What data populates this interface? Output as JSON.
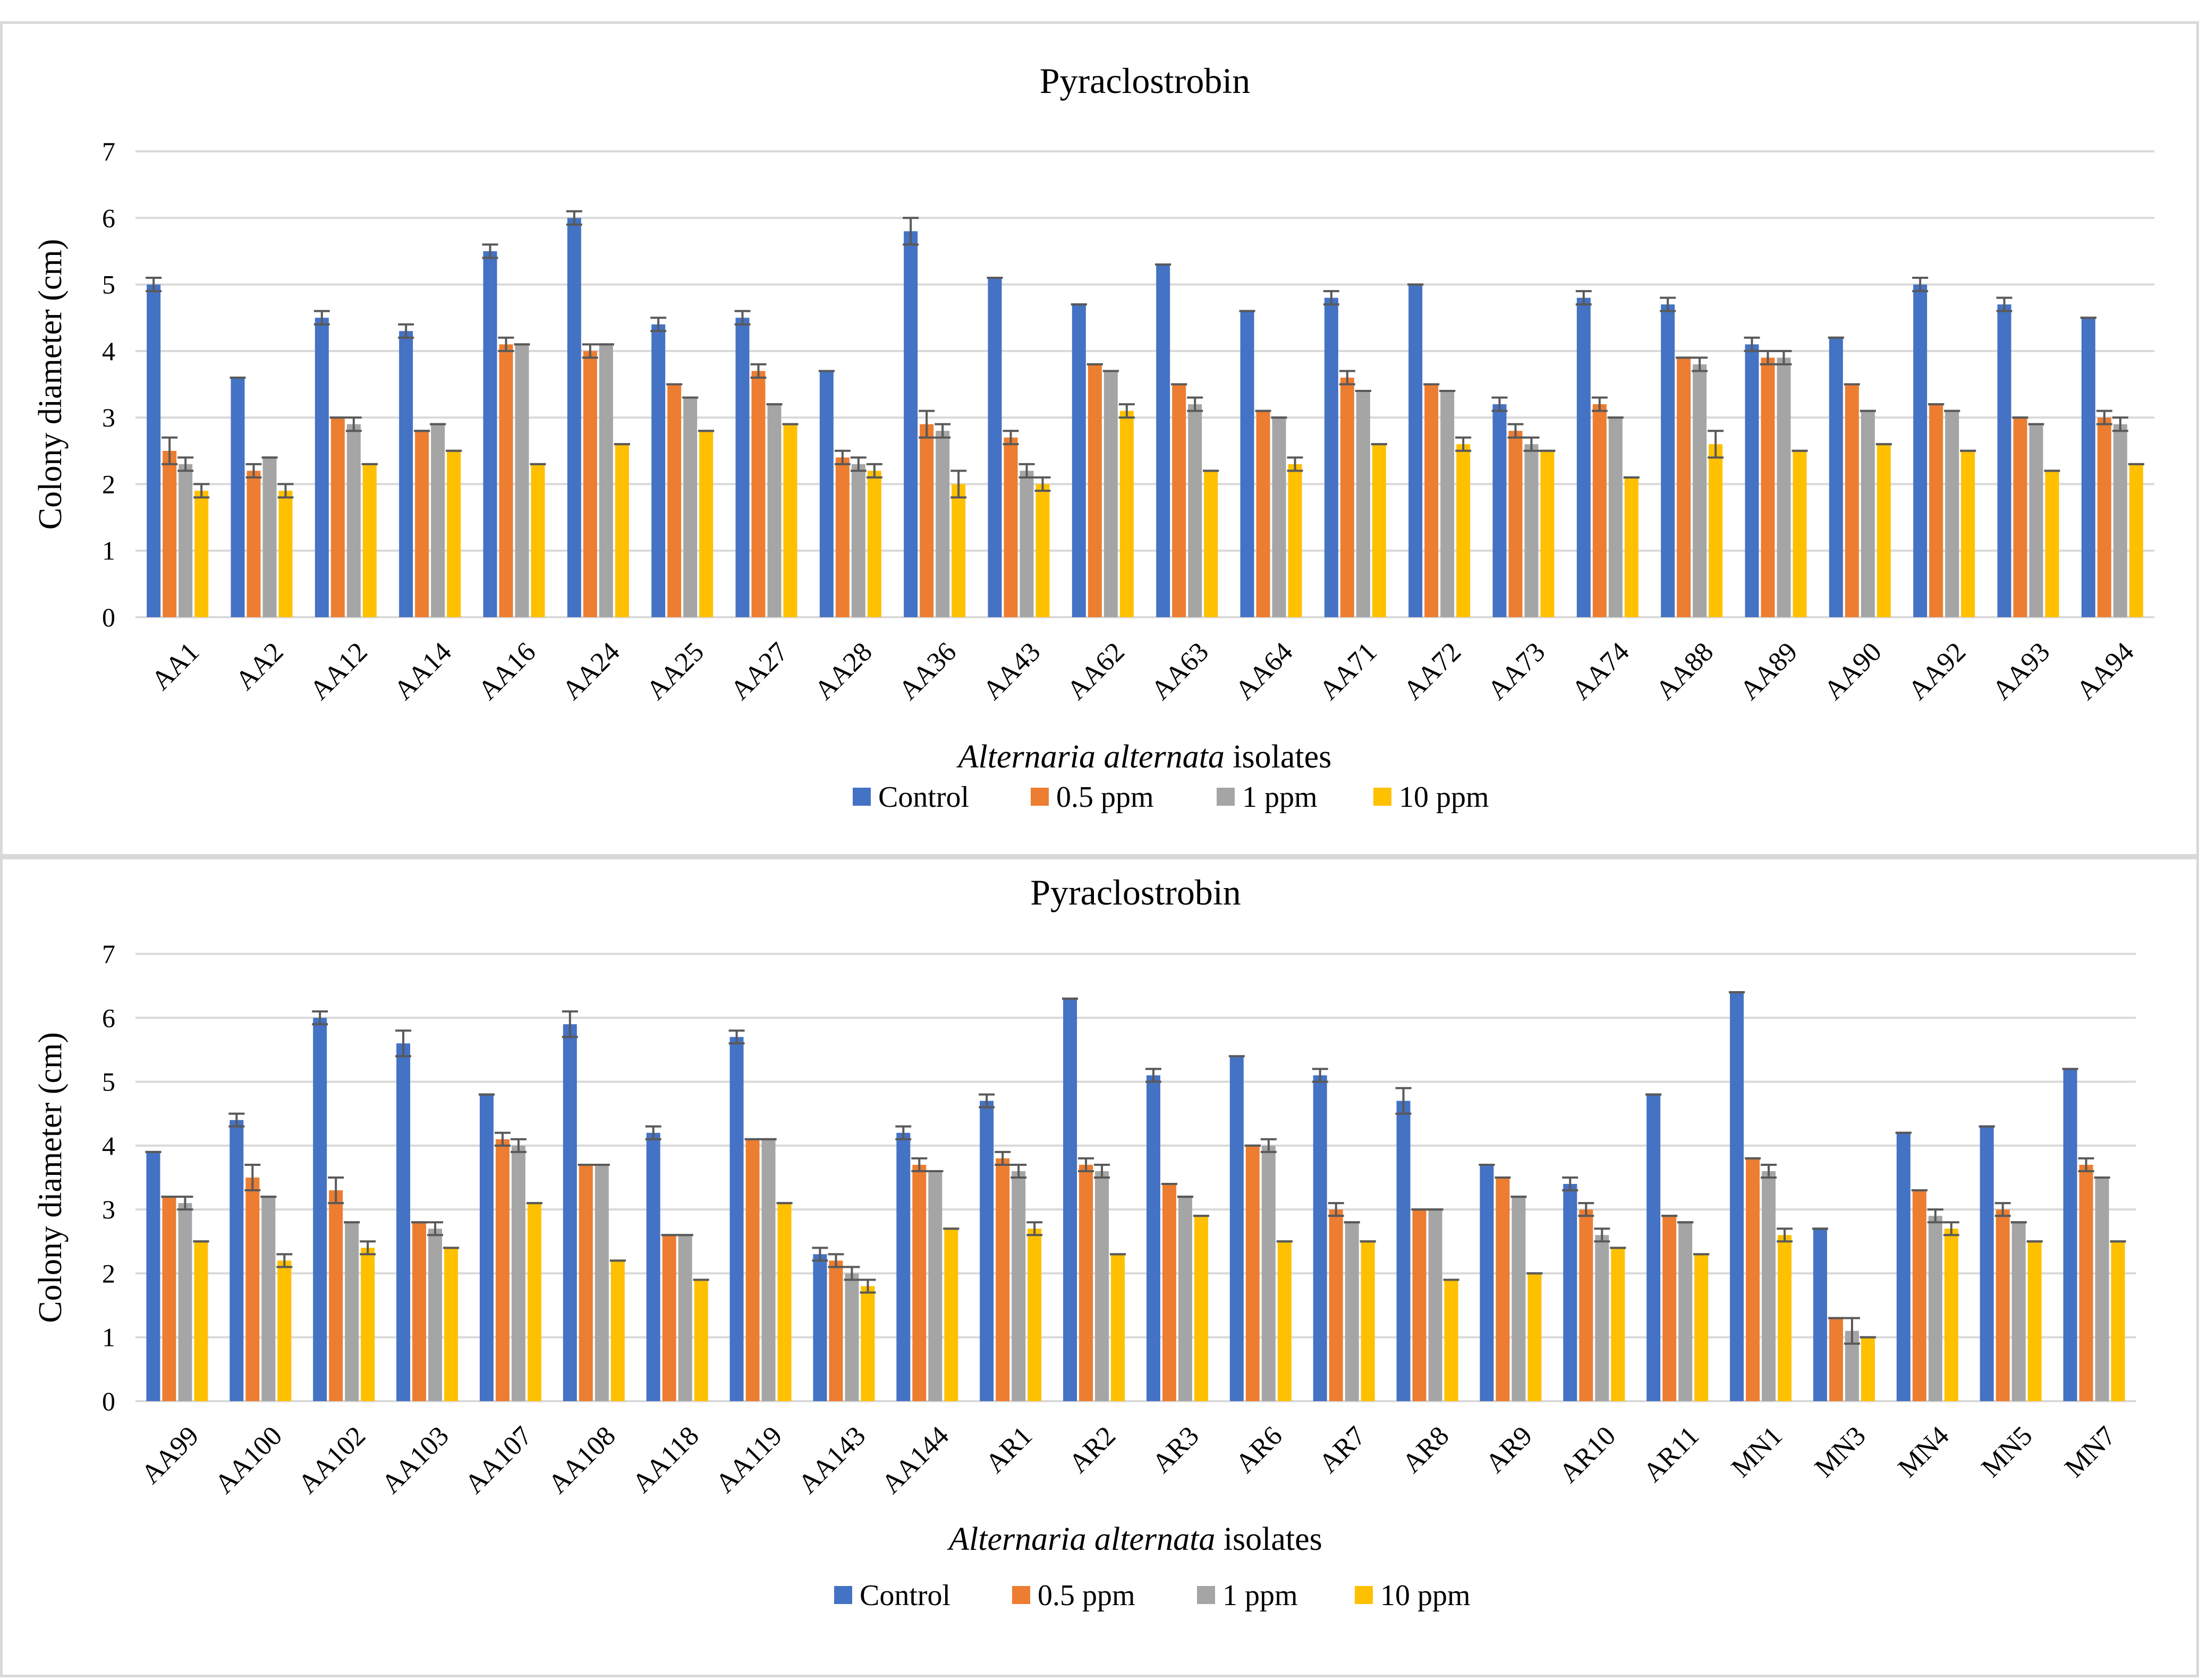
{
  "chart_data": [
    {
      "type": "bar",
      "title": "Pyraclostrobin",
      "xlabel_italic": "Alternaria alternata",
      "xlabel_rest": " isolates",
      "ylabel": "Colony diameter (cm)",
      "ylim": [
        0,
        7
      ],
      "yticks": [
        "0",
        "1",
        "2",
        "3",
        "4",
        "5",
        "6",
        "7"
      ],
      "grid": true,
      "legend_position": "bottom",
      "categories": [
        "AA1",
        "AA2",
        "AA12",
        "AA14",
        "AA16",
        "AA24",
        "AA25",
        "AA27",
        "AA28",
        "AA36",
        "AA43",
        "AA62",
        "AA63",
        "AA64",
        "AA71",
        "AA72",
        "AA73",
        "AA74",
        "AA88",
        "AA89",
        "AA90",
        "AA92",
        "AA93",
        "AA94"
      ],
      "series": [
        {
          "name": "Control",
          "color": "#4472c4",
          "values": [
            5.0,
            3.6,
            4.5,
            4.3,
            5.5,
            6.0,
            4.4,
            4.5,
            3.7,
            5.8,
            5.1,
            4.7,
            5.3,
            4.6,
            4.8,
            5.0,
            3.2,
            4.8,
            4.7,
            4.1,
            4.2,
            5.0,
            4.7,
            4.5
          ],
          "errors": [
            0.1,
            0,
            0.1,
            0.1,
            0.1,
            0.1,
            0.1,
            0.1,
            0,
            0.2,
            0,
            0,
            0,
            0,
            0.1,
            0,
            0.1,
            0.1,
            0.1,
            0.1,
            0,
            0.1,
            0.1,
            0
          ]
        },
        {
          "name": "0.5 ppm",
          "color": "#ed7d31",
          "values": [
            2.5,
            2.2,
            3.0,
            2.8,
            4.1,
            4.0,
            3.5,
            3.7,
            2.4,
            2.9,
            2.7,
            3.8,
            3.5,
            3.1,
            3.6,
            3.5,
            2.8,
            3.2,
            3.9,
            3.9,
            3.5,
            3.2,
            3.0,
            3.0
          ],
          "errors": [
            0.2,
            0.1,
            0,
            0,
            0.1,
            0.1,
            0,
            0.1,
            0.1,
            0.2,
            0.1,
            0,
            0,
            0,
            0.1,
            0,
            0.1,
            0.1,
            0,
            0.1,
            0,
            0,
            0,
            0.1
          ]
        },
        {
          "name": "1 ppm",
          "color": "#a5a5a5",
          "values": [
            2.3,
            2.4,
            2.9,
            2.9,
            4.1,
            4.1,
            3.3,
            3.2,
            2.3,
            2.8,
            2.2,
            3.7,
            3.2,
            3.0,
            3.4,
            3.4,
            2.6,
            3.0,
            3.8,
            3.9,
            3.1,
            3.1,
            2.9,
            2.9
          ],
          "errors": [
            0.1,
            0,
            0.1,
            0,
            0,
            0,
            0,
            0,
            0.1,
            0.1,
            0.1,
            0,
            0.1,
            0,
            0,
            0,
            0.1,
            0,
            0.1,
            0.1,
            0,
            0,
            0,
            0.1
          ]
        },
        {
          "name": "10 ppm",
          "color": "#ffc000",
          "values": [
            1.9,
            1.9,
            2.3,
            2.5,
            2.3,
            2.6,
            2.8,
            2.9,
            2.2,
            2.0,
            2.0,
            3.1,
            2.2,
            2.3,
            2.6,
            2.6,
            2.5,
            2.1,
            2.6,
            2.5,
            2.6,
            2.5,
            2.2,
            2.3
          ],
          "errors": [
            0.1,
            0.1,
            0,
            0,
            0,
            0,
            0,
            0,
            0.1,
            0.2,
            0.1,
            0.1,
            0,
            0.1,
            0,
            0.1,
            0,
            0,
            0.2,
            0,
            0,
            0,
            0,
            0
          ]
        }
      ]
    },
    {
      "type": "bar",
      "title": "Pyraclostrobin",
      "xlabel_italic": "Alternaria alternata",
      "xlabel_rest": " isolates",
      "ylabel": "Colony diameter (cm)",
      "ylim": [
        0,
        7
      ],
      "yticks": [
        "0",
        "1",
        "2",
        "3",
        "4",
        "5",
        "6",
        "7"
      ],
      "grid": true,
      "legend_position": "bottom",
      "categories": [
        "AA99",
        "AA100",
        "AA102",
        "AA103",
        "AA107",
        "AA108",
        "AA118",
        "AA119",
        "AA143",
        "AA144",
        "AR1",
        "AR2",
        "AR3",
        "AR6",
        "AR7",
        "AR8",
        "AR9",
        "AR10",
        "AR11",
        "MN1",
        "MN3",
        "MN4",
        "MN5",
        "MN7"
      ],
      "series": [
        {
          "name": "Control",
          "color": "#4472c4",
          "values": [
            3.9,
            4.4,
            6.0,
            5.6,
            4.8,
            5.9,
            4.2,
            5.7,
            2.3,
            4.2,
            4.7,
            6.3,
            5.1,
            5.4,
            5.1,
            4.7,
            3.7,
            3.4,
            4.8,
            6.4,
            2.7,
            4.2,
            4.3,
            5.2
          ],
          "errors": [
            0,
            0.1,
            0.1,
            0.2,
            0,
            0.2,
            0.1,
            0.1,
            0.1,
            0.1,
            0.1,
            0,
            0.1,
            0,
            0.1,
            0.2,
            0,
            0.1,
            0,
            0,
            0,
            0,
            0,
            0
          ]
        },
        {
          "name": "0.5 ppm",
          "color": "#ed7d31",
          "values": [
            3.2,
            3.5,
            3.3,
            2.8,
            4.1,
            3.7,
            2.6,
            4.1,
            2.2,
            3.7,
            3.8,
            3.7,
            3.4,
            4.0,
            3.0,
            3.0,
            3.5,
            3.0,
            2.9,
            3.8,
            1.3,
            3.3,
            3.0,
            3.7
          ],
          "errors": [
            0,
            0.2,
            0.2,
            0,
            0.1,
            0,
            0,
            0,
            0.1,
            0.1,
            0.1,
            0.1,
            0,
            0,
            0.1,
            0,
            0,
            0.1,
            0,
            0,
            0,
            0,
            0.1,
            0.1
          ]
        },
        {
          "name": "1 ppm",
          "color": "#a5a5a5",
          "values": [
            3.1,
            3.2,
            2.8,
            2.7,
            4.0,
            3.7,
            2.6,
            4.1,
            2.0,
            3.6,
            3.6,
            3.6,
            3.2,
            4.0,
            2.8,
            3.0,
            3.2,
            2.6,
            2.8,
            3.6,
            1.1,
            2.9,
            2.8,
            3.5
          ],
          "errors": [
            0.1,
            0,
            0,
            0.1,
            0.1,
            0,
            0,
            0,
            0.1,
            0,
            0.1,
            0.1,
            0,
            0.1,
            0,
            0,
            0,
            0.1,
            0,
            0.1,
            0.2,
            0.1,
            0,
            0
          ]
        },
        {
          "name": "10 ppm",
          "color": "#ffc000",
          "values": [
            2.5,
            2.2,
            2.4,
            2.4,
            3.1,
            2.2,
            1.9,
            3.1,
            1.8,
            2.7,
            2.7,
            2.3,
            2.9,
            2.5,
            2.5,
            1.9,
            2.0,
            2.4,
            2.3,
            2.6,
            1.0,
            2.7,
            2.5,
            2.5
          ],
          "errors": [
            0,
            0.1,
            0.1,
            0,
            0,
            0,
            0,
            0,
            0.1,
            0,
            0.1,
            0,
            0,
            0,
            0,
            0,
            0,
            0,
            0,
            0.1,
            0,
            0.1,
            0,
            0
          ]
        }
      ]
    }
  ]
}
